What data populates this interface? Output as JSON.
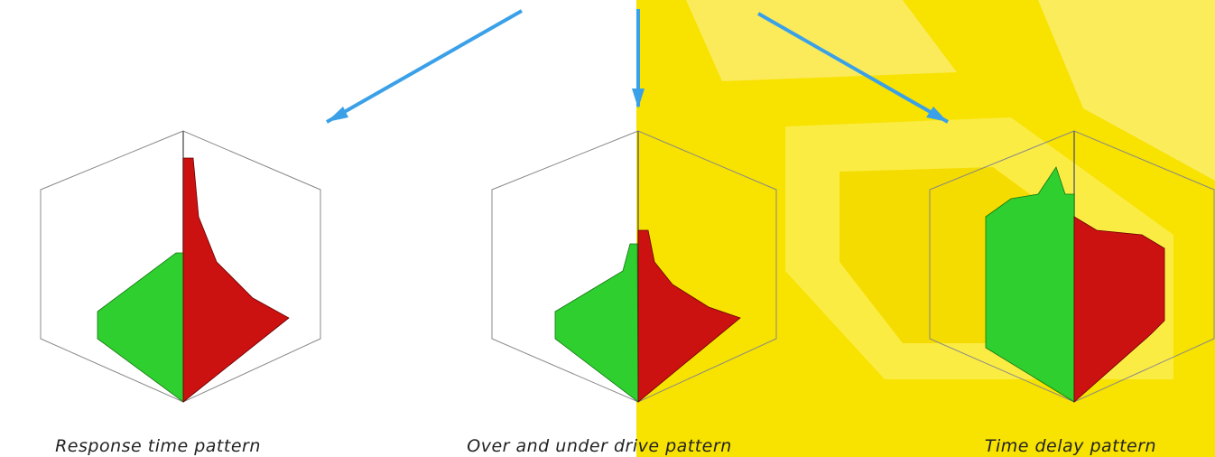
{
  "captions": [
    "Response time pattern",
    "Over and under drive pattern",
    "Time delay pattern"
  ]
}
